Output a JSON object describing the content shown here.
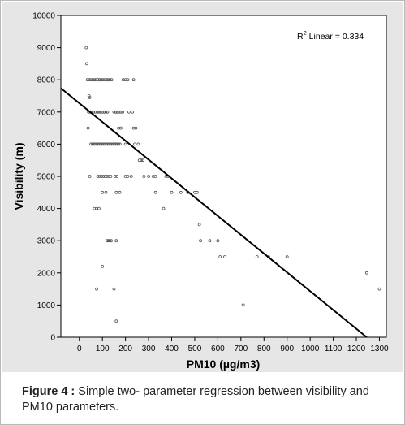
{
  "chart_data": {
    "type": "scatter",
    "xlabel": "PM10 (µg/m3)",
    "ylabel": "Visibility (m)",
    "xlim": [
      -80,
      1330
    ],
    "ylim": [
      0,
      10000
    ],
    "x_ticks": [
      0,
      100,
      200,
      300,
      400,
      500,
      600,
      700,
      800,
      900,
      1000,
      1100,
      1200,
      1300
    ],
    "y_ticks": [
      0,
      1000,
      2000,
      3000,
      4000,
      5000,
      6000,
      7000,
      8000,
      9000,
      10000
    ],
    "grid": false,
    "annotation": {
      "prefix": "R",
      "superscript": "2",
      "suffix": " Linear = 0.334"
    },
    "regression_line": {
      "x": [
        -80,
        1245
      ],
      "y": [
        7740,
        0
      ]
    },
    "points": [
      {
        "x": 30,
        "y": 9000
      },
      {
        "x": 32,
        "y": 8500
      },
      {
        "x": 35,
        "y": 8000
      },
      {
        "x": 42,
        "y": 8000
      },
      {
        "x": 50,
        "y": 8000
      },
      {
        "x": 58,
        "y": 8000
      },
      {
        "x": 65,
        "y": 8000
      },
      {
        "x": 72,
        "y": 8000
      },
      {
        "x": 80,
        "y": 8000
      },
      {
        "x": 88,
        "y": 8000
      },
      {
        "x": 95,
        "y": 8000
      },
      {
        "x": 102,
        "y": 8000
      },
      {
        "x": 110,
        "y": 8000
      },
      {
        "x": 118,
        "y": 8000
      },
      {
        "x": 125,
        "y": 8000
      },
      {
        "x": 132,
        "y": 8000
      },
      {
        "x": 140,
        "y": 8000
      },
      {
        "x": 190,
        "y": 8000
      },
      {
        "x": 200,
        "y": 8000
      },
      {
        "x": 210,
        "y": 8000
      },
      {
        "x": 235,
        "y": 8000
      },
      {
        "x": 42,
        "y": 7500
      },
      {
        "x": 45,
        "y": 7450
      },
      {
        "x": 40,
        "y": 7000
      },
      {
        "x": 48,
        "y": 7000
      },
      {
        "x": 55,
        "y": 7000
      },
      {
        "x": 62,
        "y": 7000
      },
      {
        "x": 70,
        "y": 7000
      },
      {
        "x": 78,
        "y": 7000
      },
      {
        "x": 85,
        "y": 7000
      },
      {
        "x": 92,
        "y": 7000
      },
      {
        "x": 100,
        "y": 7000
      },
      {
        "x": 108,
        "y": 7000
      },
      {
        "x": 115,
        "y": 7000
      },
      {
        "x": 122,
        "y": 7000
      },
      {
        "x": 150,
        "y": 7000
      },
      {
        "x": 158,
        "y": 7000
      },
      {
        "x": 165,
        "y": 7000
      },
      {
        "x": 172,
        "y": 7000
      },
      {
        "x": 180,
        "y": 7000
      },
      {
        "x": 188,
        "y": 7000
      },
      {
        "x": 215,
        "y": 7000
      },
      {
        "x": 230,
        "y": 7000
      },
      {
        "x": 38,
        "y": 6500
      },
      {
        "x": 170,
        "y": 6500
      },
      {
        "x": 180,
        "y": 6500
      },
      {
        "x": 235,
        "y": 6500
      },
      {
        "x": 245,
        "y": 6500
      },
      {
        "x": 50,
        "y": 6000
      },
      {
        "x": 56,
        "y": 6000
      },
      {
        "x": 62,
        "y": 6000
      },
      {
        "x": 68,
        "y": 6000
      },
      {
        "x": 74,
        "y": 6000
      },
      {
        "x": 80,
        "y": 6000
      },
      {
        "x": 86,
        "y": 6000
      },
      {
        "x": 92,
        "y": 6000
      },
      {
        "x": 98,
        "y": 6000
      },
      {
        "x": 104,
        "y": 6000
      },
      {
        "x": 110,
        "y": 6000
      },
      {
        "x": 116,
        "y": 6000
      },
      {
        "x": 122,
        "y": 6000
      },
      {
        "x": 128,
        "y": 6000
      },
      {
        "x": 134,
        "y": 6000
      },
      {
        "x": 140,
        "y": 6000
      },
      {
        "x": 146,
        "y": 6000
      },
      {
        "x": 152,
        "y": 6000
      },
      {
        "x": 158,
        "y": 6000
      },
      {
        "x": 164,
        "y": 6000
      },
      {
        "x": 170,
        "y": 6000
      },
      {
        "x": 176,
        "y": 6000
      },
      {
        "x": 200,
        "y": 6000
      },
      {
        "x": 240,
        "y": 6000
      },
      {
        "x": 255,
        "y": 6000
      },
      {
        "x": 260,
        "y": 5500
      },
      {
        "x": 268,
        "y": 5500
      },
      {
        "x": 275,
        "y": 5500
      },
      {
        "x": 45,
        "y": 5000
      },
      {
        "x": 80,
        "y": 5000
      },
      {
        "x": 88,
        "y": 5000
      },
      {
        "x": 96,
        "y": 5000
      },
      {
        "x": 104,
        "y": 5000
      },
      {
        "x": 112,
        "y": 5000
      },
      {
        "x": 120,
        "y": 5000
      },
      {
        "x": 128,
        "y": 5000
      },
      {
        "x": 136,
        "y": 5000
      },
      {
        "x": 155,
        "y": 5000
      },
      {
        "x": 163,
        "y": 5000
      },
      {
        "x": 200,
        "y": 5000
      },
      {
        "x": 210,
        "y": 5000
      },
      {
        "x": 225,
        "y": 5000
      },
      {
        "x": 280,
        "y": 5000
      },
      {
        "x": 300,
        "y": 5000
      },
      {
        "x": 320,
        "y": 5000
      },
      {
        "x": 330,
        "y": 5000
      },
      {
        "x": 375,
        "y": 5000
      },
      {
        "x": 385,
        "y": 5000
      },
      {
        "x": 100,
        "y": 4500
      },
      {
        "x": 115,
        "y": 4500
      },
      {
        "x": 160,
        "y": 4500
      },
      {
        "x": 175,
        "y": 4500
      },
      {
        "x": 330,
        "y": 4500
      },
      {
        "x": 400,
        "y": 4500
      },
      {
        "x": 440,
        "y": 4500
      },
      {
        "x": 470,
        "y": 4500
      },
      {
        "x": 500,
        "y": 4500
      },
      {
        "x": 510,
        "y": 4500
      },
      {
        "x": 65,
        "y": 4000
      },
      {
        "x": 75,
        "y": 4000
      },
      {
        "x": 85,
        "y": 4000
      },
      {
        "x": 365,
        "y": 4000
      },
      {
        "x": 520,
        "y": 3500
      },
      {
        "x": 120,
        "y": 3000
      },
      {
        "x": 126,
        "y": 3000
      },
      {
        "x": 132,
        "y": 3000
      },
      {
        "x": 138,
        "y": 3000
      },
      {
        "x": 160,
        "y": 3000
      },
      {
        "x": 525,
        "y": 3000
      },
      {
        "x": 565,
        "y": 3000
      },
      {
        "x": 600,
        "y": 3000
      },
      {
        "x": 610,
        "y": 2500
      },
      {
        "x": 630,
        "y": 2500
      },
      {
        "x": 770,
        "y": 2500
      },
      {
        "x": 820,
        "y": 2500
      },
      {
        "x": 900,
        "y": 2500
      },
      {
        "x": 100,
        "y": 2200
      },
      {
        "x": 1245,
        "y": 2000
      },
      {
        "x": 75,
        "y": 1500
      },
      {
        "x": 150,
        "y": 1500
      },
      {
        "x": 1300,
        "y": 1500
      },
      {
        "x": 710,
        "y": 1000
      },
      {
        "x": 160,
        "y": 500
      }
    ]
  },
  "caption": {
    "label": "Figure 4 :",
    "text": " Simple two- parameter regression between visibility and PM10 parameters."
  },
  "colors": {
    "panel": "#e6e6e6",
    "plot_bg": "#ffffff",
    "ink": "#000000",
    "point": "#555555"
  }
}
